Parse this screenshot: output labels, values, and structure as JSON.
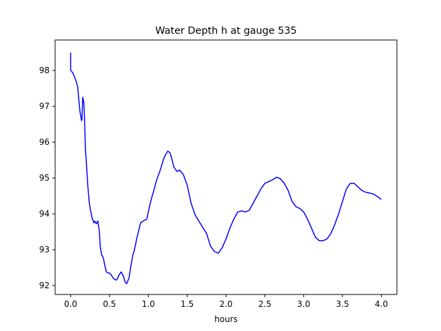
{
  "chart_data": {
    "type": "line",
    "title": "Water Depth h at gauge 535",
    "xlabel": "hours",
    "ylabel": "",
    "xlim": [
      -0.2,
      4.2
    ],
    "ylim": [
      91.75,
      98.85
    ],
    "xticks": [
      0.0,
      0.5,
      1.0,
      1.5,
      2.0,
      2.5,
      3.0,
      3.5,
      4.0
    ],
    "xtick_labels": [
      "0.0",
      "0.5",
      "1.0",
      "1.5",
      "2.0",
      "2.5",
      "3.0",
      "3.5",
      "4.0"
    ],
    "yticks": [
      92,
      93,
      94,
      95,
      96,
      97,
      98
    ],
    "ytick_labels": [
      "92",
      "93",
      "94",
      "95",
      "96",
      "97",
      "98"
    ],
    "grid": false,
    "series": [
      {
        "color": "#0000ff",
        "x": [
          0.0,
          0.0,
          0.01,
          0.03,
          0.05,
          0.07,
          0.09,
          0.1,
          0.12,
          0.14,
          0.145,
          0.155,
          0.17,
          0.18,
          0.19,
          0.2,
          0.22,
          0.24,
          0.26,
          0.28,
          0.3,
          0.31,
          0.33,
          0.35,
          0.37,
          0.38,
          0.4,
          0.42,
          0.44,
          0.46,
          0.48,
          0.5,
          0.52,
          0.55,
          0.58,
          0.6,
          0.62,
          0.65,
          0.68,
          0.7,
          0.72,
          0.75,
          0.78,
          0.8,
          0.82,
          0.85,
          0.9,
          0.95,
          0.98,
          1.0,
          1.02,
          1.05,
          1.08,
          1.1,
          1.15,
          1.2,
          1.23,
          1.25,
          1.28,
          1.3,
          1.33,
          1.37,
          1.4,
          1.45,
          1.5,
          1.55,
          1.6,
          1.65,
          1.7,
          1.75,
          1.8,
          1.85,
          1.9,
          1.95,
          2.0,
          2.05,
          2.1,
          2.15,
          2.2,
          2.25,
          2.3,
          2.35,
          2.4,
          2.45,
          2.5,
          2.55,
          2.6,
          2.65,
          2.7,
          2.75,
          2.8,
          2.85,
          2.9,
          2.95,
          3.0,
          3.05,
          3.1,
          3.15,
          3.2,
          3.25,
          3.3,
          3.35,
          3.4,
          3.45,
          3.5,
          3.55,
          3.6,
          3.65,
          3.7,
          3.75,
          3.8,
          3.85,
          3.9,
          3.95,
          4.0
        ],
        "y": [
          98.5,
          98.0,
          97.98,
          97.92,
          97.82,
          97.7,
          97.55,
          97.3,
          96.85,
          96.6,
          96.62,
          97.25,
          97.1,
          96.55,
          95.8,
          95.5,
          94.8,
          94.3,
          94.05,
          93.85,
          93.75,
          93.8,
          93.72,
          93.8,
          93.5,
          93.1,
          92.85,
          92.78,
          92.55,
          92.38,
          92.35,
          92.35,
          92.3,
          92.2,
          92.15,
          92.18,
          92.28,
          92.38,
          92.25,
          92.1,
          92.05,
          92.2,
          92.6,
          92.85,
          92.98,
          93.3,
          93.75,
          93.82,
          93.85,
          94.05,
          94.25,
          94.5,
          94.72,
          94.9,
          95.2,
          95.55,
          95.68,
          95.75,
          95.7,
          95.55,
          95.3,
          95.18,
          95.22,
          95.1,
          94.8,
          94.3,
          93.98,
          93.8,
          93.62,
          93.45,
          93.1,
          92.95,
          92.9,
          93.05,
          93.3,
          93.6,
          93.85,
          94.05,
          94.08,
          94.05,
          94.1,
          94.3,
          94.5,
          94.7,
          94.85,
          94.9,
          94.95,
          95.02,
          94.98,
          94.85,
          94.65,
          94.35,
          94.2,
          94.15,
          94.05,
          93.85,
          93.6,
          93.35,
          93.25,
          93.25,
          93.3,
          93.45,
          93.7,
          94.0,
          94.35,
          94.7,
          94.85,
          94.85,
          94.75,
          94.65,
          94.6,
          94.58,
          94.55,
          94.48,
          94.4
        ]
      }
    ]
  }
}
